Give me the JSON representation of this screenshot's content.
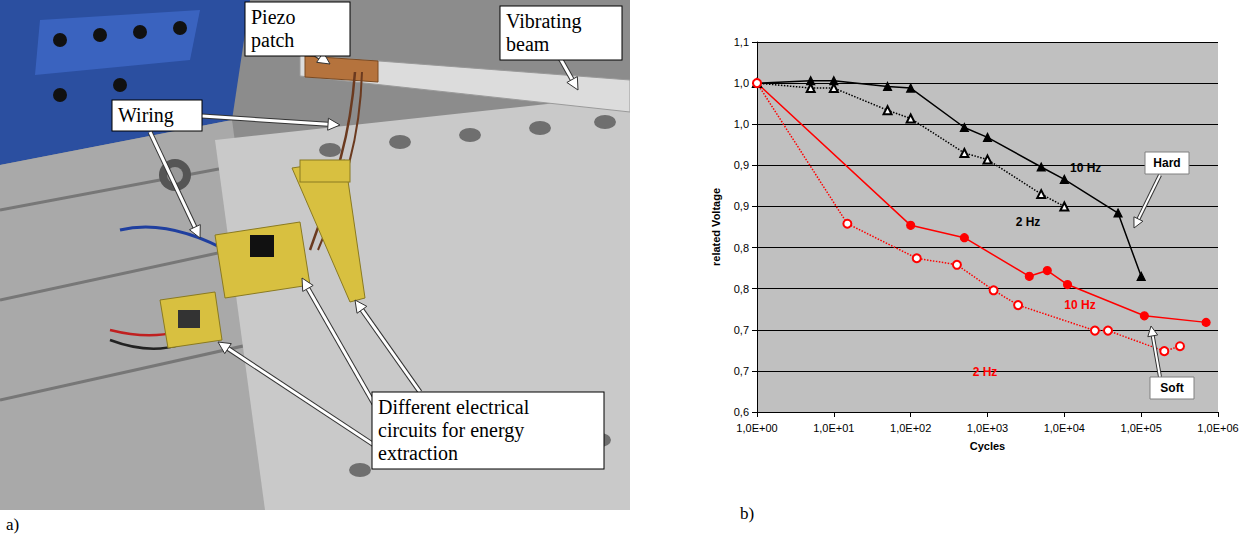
{
  "photo": {
    "label": "a)",
    "callouts": [
      "Piezo patch",
      "Vibrating beam",
      "Wiring",
      "Different electrical circuits for energy extraction"
    ]
  },
  "chart_data": {
    "type": "line",
    "panel_label": "b)",
    "x_label": "Cycles",
    "y_label": "related Voltage",
    "log": "x",
    "grid": true,
    "xlim": [
      1,
      1000000
    ],
    "ylim": [
      0.6,
      1.05
    ],
    "xticks": [
      {
        "value": 1,
        "label": "1,0E+00"
      },
      {
        "value": 10,
        "label": "1,0E+01"
      },
      {
        "value": 100,
        "label": "1,0E+02"
      },
      {
        "value": 1000,
        "label": "1,0E+03"
      },
      {
        "value": 10000,
        "label": "1,0E+04"
      },
      {
        "value": 100000,
        "label": "1,0E+05"
      },
      {
        "value": 1000000,
        "label": "1,0E+06"
      }
    ],
    "yticks": [
      {
        "value": 0.6,
        "label": "0,6"
      },
      {
        "value": 0.65,
        "label": "0,7"
      },
      {
        "value": 0.7,
        "label": "0,7"
      },
      {
        "value": 0.75,
        "label": "0,8"
      },
      {
        "value": 0.8,
        "label": "0,8"
      },
      {
        "value": 0.85,
        "label": "0,9"
      },
      {
        "value": 0.9,
        "label": "0,9"
      },
      {
        "value": 0.95,
        "label": "1,0"
      },
      {
        "value": 1.0,
        "label": "1,0"
      },
      {
        "value": 1.05,
        "label": "1,1"
      }
    ],
    "series": [
      {
        "name": "10 Hz",
        "color": "#000000",
        "marker": "filled-triangle",
        "line_style": "solid",
        "x": [
          1,
          5,
          10,
          50,
          100,
          500,
          1000,
          5000,
          10000,
          50000,
          100000
        ],
        "values": [
          1.0,
          1.003,
          1.003,
          0.996,
          0.994,
          0.946,
          0.934,
          0.898,
          0.883,
          0.842,
          0.765
        ]
      },
      {
        "name": "2 Hz",
        "color": "#000000",
        "marker": "open-triangle",
        "line_style": "dotted",
        "x": [
          1,
          5,
          10,
          50,
          100,
          500,
          1000,
          5000,
          10000
        ],
        "values": [
          1.0,
          0.994,
          0.994,
          0.967,
          0.957,
          0.915,
          0.907,
          0.865,
          0.85
        ]
      },
      {
        "name": "10 Hz",
        "color": "#ff0000",
        "marker": "filled-circle",
        "line_style": "solid",
        "x": [
          1,
          100,
          500,
          3500,
          6000,
          11000,
          110000,
          700000
        ],
        "values": [
          1.0,
          0.827,
          0.812,
          0.765,
          0.772,
          0.755,
          0.717,
          0.709
        ]
      },
      {
        "name": "2 Hz",
        "color": "#ff0000",
        "marker": "open-circle",
        "line_style": "dotted",
        "x": [
          1,
          15,
          120,
          400,
          1200,
          2500,
          25000,
          37000,
          200000,
          320000
        ],
        "values": [
          1.0,
          0.829,
          0.787,
          0.779,
          0.748,
          0.73,
          0.699,
          0.699,
          0.674,
          0.68
        ]
      }
    ],
    "annotations": [
      "Hard",
      "Soft"
    ]
  }
}
